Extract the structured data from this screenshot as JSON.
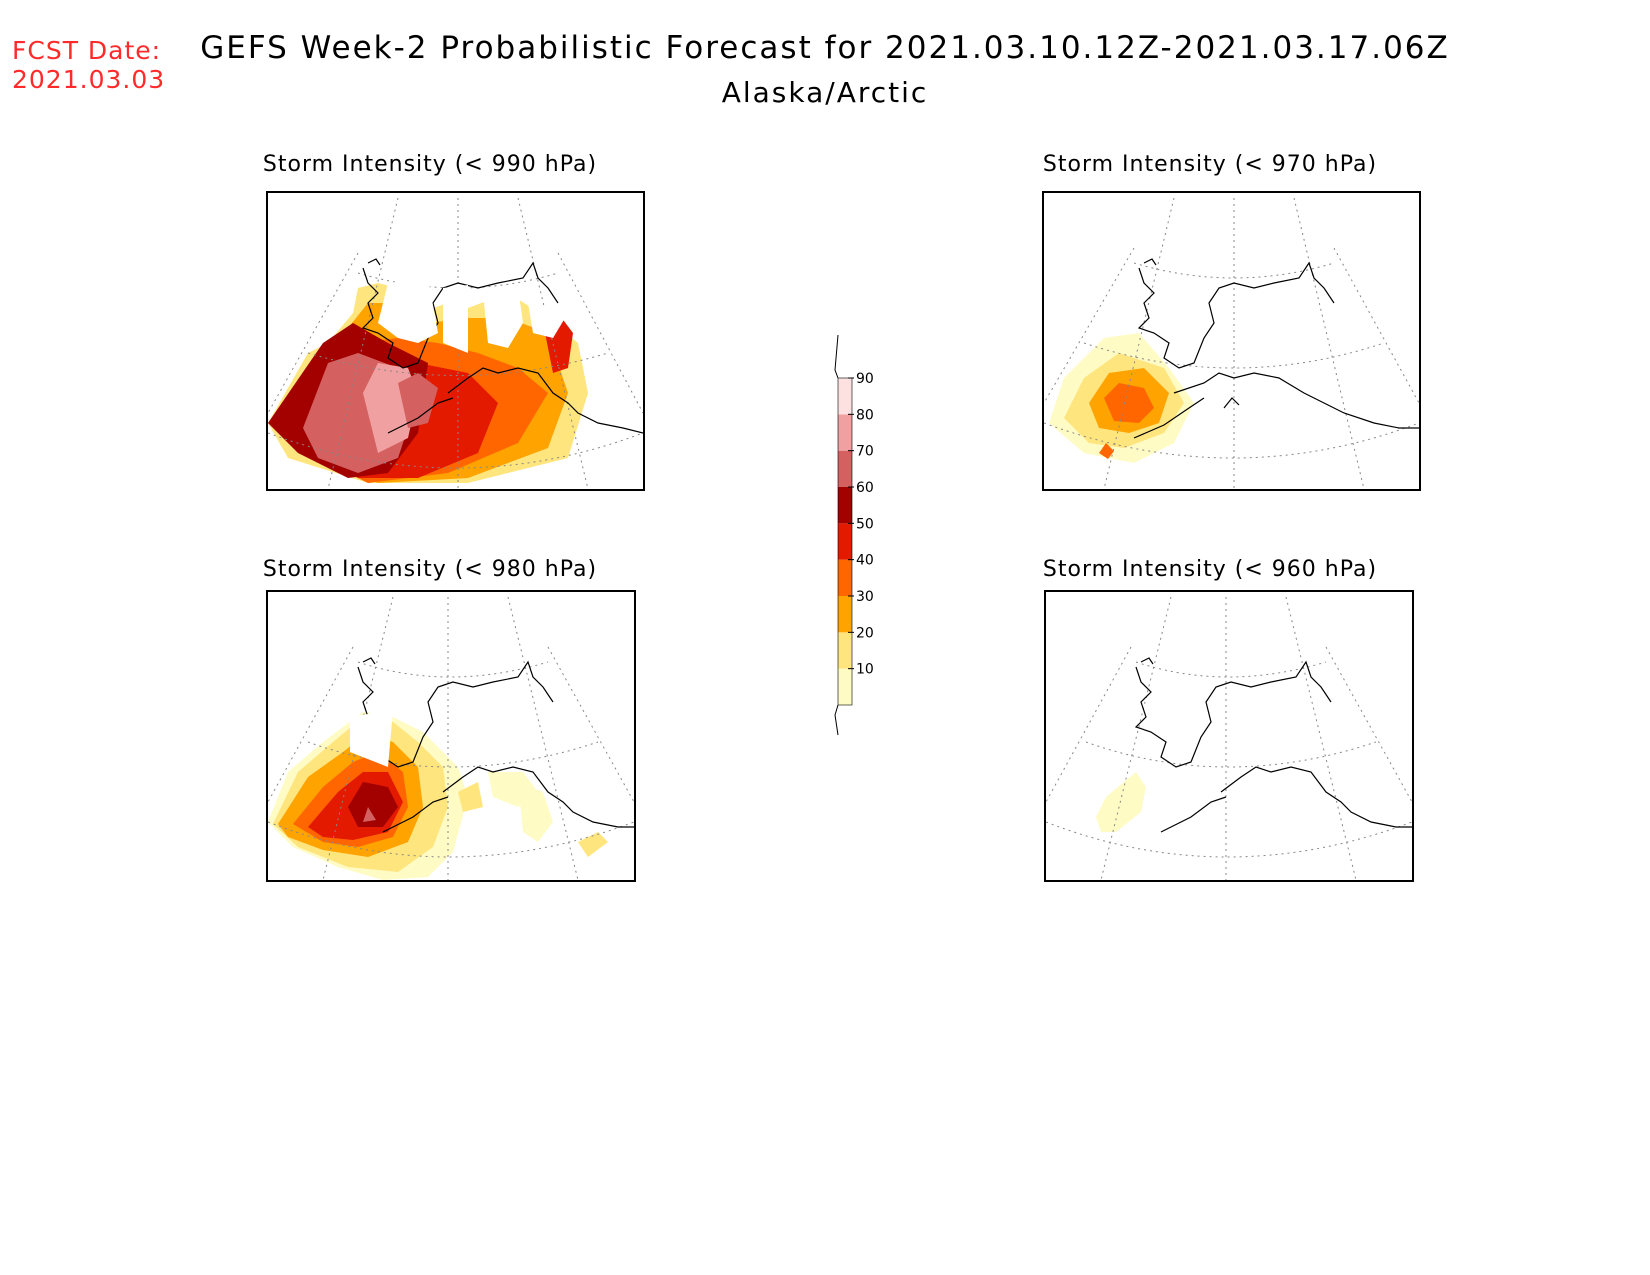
{
  "header": {
    "fcst_label": "FCST Date:",
    "fcst_date": "2021.03.03",
    "title": "GEFS Week-2 Probabilistic Forecast for 2021.03.10.12Z-2021.03.17.06Z",
    "subtitle": "Alaska/Arctic"
  },
  "panels": [
    {
      "id": "p990",
      "title": "Storm Intensity (< 990 hPa)"
    },
    {
      "id": "p970",
      "title": "Storm Intensity (< 970 hPa)"
    },
    {
      "id": "p980",
      "title": "Storm Intensity (< 980 hPa)"
    },
    {
      "id": "p960",
      "title": "Storm Intensity (< 960 hPa)"
    }
  ],
  "colorbar": {
    "ticks": [
      "10",
      "20",
      "30",
      "40",
      "50",
      "60",
      "70",
      "80",
      "90"
    ],
    "colors": [
      "#fffbc4",
      "#ffe57e",
      "#ffa300",
      "#ff6600",
      "#e31a00",
      "#a30000",
      "#d46060",
      "#f0a0a0",
      "#fde0e0"
    ]
  }
}
